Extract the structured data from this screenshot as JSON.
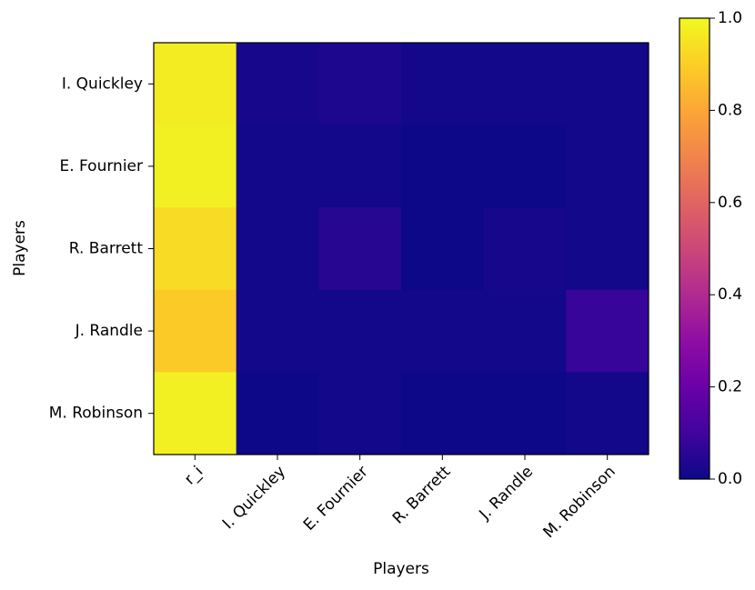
{
  "chart_data": {
    "type": "heatmap",
    "xlabel": "Players",
    "ylabel": "Players",
    "x_categories": [
      "r_i",
      "I. Quickley",
      "E. Fournier",
      "R. Barrett",
      "J. Randle",
      "M. Robinson"
    ],
    "y_categories": [
      "I. Quickley",
      "E. Fournier",
      "R. Barrett",
      "J. Randle",
      "M. Robinson"
    ],
    "values": [
      [
        0.97,
        0.02,
        0.03,
        0.01,
        0.01,
        0.01
      ],
      [
        0.98,
        0.01,
        0.01,
        0.0,
        0.0,
        0.01
      ],
      [
        0.93,
        0.01,
        0.05,
        0.0,
        0.02,
        0.01
      ],
      [
        0.89,
        0.01,
        0.01,
        0.01,
        0.01,
        0.08
      ],
      [
        0.98,
        0.0,
        0.01,
        0.0,
        0.0,
        0.01
      ]
    ],
    "colormap": "plasma",
    "colorbar_lim": [
      0,
      1
    ],
    "colorbar_ticks": [
      {
        "value": 0,
        "label": "0.0"
      },
      {
        "value": 0.2,
        "label": "0.2"
      },
      {
        "value": 0.4,
        "label": "0.4"
      },
      {
        "value": 0.6,
        "label": "0.6"
      },
      {
        "value": 0.8,
        "label": "0.8"
      },
      {
        "value": 1,
        "label": "1.0"
      }
    ]
  }
}
